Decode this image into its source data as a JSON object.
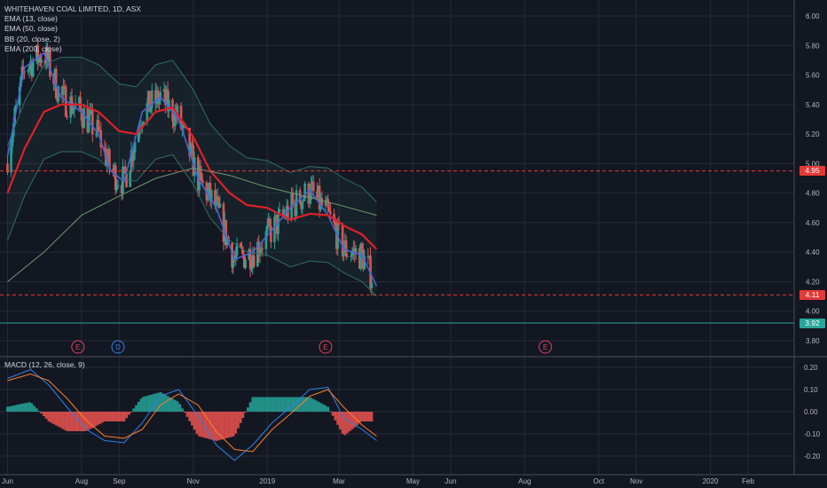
{
  "legend": {
    "title": "WHITEHAVEN COAL LIMITED, 1D, ASX",
    "ema13": "EMA (13, close)",
    "ema50": "EMA (50, close)",
    "bb": "BB (20, close, 2)",
    "ema200": "EMA (200, close)",
    "macd": "MACD (12, 26, close, 9)"
  },
  "price_tags": [
    {
      "label": "4.95",
      "value": 4.95,
      "color": "#e53935"
    },
    {
      "label": "4.11",
      "value": 4.11,
      "color": "#e53935"
    },
    {
      "label": "3.92",
      "value": 3.92,
      "color": "#26a69a"
    }
  ],
  "event_markers": [
    {
      "label": "E",
      "date": "2018-07-29",
      "color": "#e0445a"
    },
    {
      "label": "D",
      "date": "2018-08-31",
      "color": "#2f80ed"
    },
    {
      "label": "E",
      "date": "2019-02-18",
      "color": "#e0445a"
    },
    {
      "label": "E",
      "date": "2019-08-18",
      "color": "#e0445a"
    }
  ],
  "colors": {
    "background": "#131722",
    "grid": "#262b38",
    "up": "#26a69a",
    "down": "#ef5350",
    "ema13": "#4a63d9",
    "ema50": "#e0202a",
    "ema200": "#6c9a70",
    "bb": "#2f6f63",
    "macd_line": "#2f80ed",
    "signal_line": "#ff7f2a"
  },
  "chart_data": [
    {
      "type": "candlestick",
      "title": "WHITEHAVEN COAL LIMITED, 1D, ASX",
      "x_ticks": [
        "Jun",
        "Aug",
        "Sep",
        "Nov",
        "2019",
        "Mar",
        "May",
        "Jun",
        "Aug",
        "Oct",
        "Nov",
        "2020",
        "Feb"
      ],
      "y_ticks": [
        "6.00",
        "5.80",
        "5.60",
        "5.40",
        "5.20",
        "5.00",
        "4.80",
        "4.60",
        "4.40",
        "4.20",
        "4.00",
        "3.80"
      ],
      "ylim": [
        3.75,
        6.05
      ],
      "series": [
        {
          "name": "EMA (13, close)",
          "x": [
            "2018-06-01",
            "2018-06-15",
            "2018-07-01",
            "2018-07-15",
            "2018-08-01",
            "2018-08-15",
            "2018-08-25",
            "2018-09-05",
            "2018-09-20",
            "2018-10-05",
            "2018-10-20",
            "2018-11-05",
            "2018-11-20",
            "2018-12-05",
            "2018-12-20",
            "2019-01-05",
            "2019-01-20",
            "2019-02-05",
            "2019-02-20",
            "2019-03-05",
            "2019-03-20",
            "2019-04-01"
          ],
          "values": [
            5.05,
            5.65,
            5.75,
            5.45,
            5.35,
            5.2,
            4.95,
            4.88,
            5.35,
            5.45,
            5.3,
            4.9,
            4.7,
            4.35,
            4.4,
            4.55,
            4.7,
            4.82,
            4.65,
            4.42,
            4.38,
            4.17
          ]
        },
        {
          "name": "EMA (50, close)",
          "x": [
            "2018-06-01",
            "2018-06-15",
            "2018-07-01",
            "2018-07-15",
            "2018-08-01",
            "2018-08-15",
            "2018-09-01",
            "2018-09-15",
            "2018-10-01",
            "2018-10-15",
            "2018-11-01",
            "2018-11-15",
            "2018-12-01",
            "2018-12-15",
            "2019-01-01",
            "2019-01-20",
            "2019-02-05",
            "2019-02-20",
            "2019-03-05",
            "2019-03-20",
            "2019-04-01"
          ],
          "values": [
            4.8,
            5.1,
            5.35,
            5.4,
            5.4,
            5.35,
            5.22,
            5.2,
            5.35,
            5.38,
            5.18,
            4.95,
            4.8,
            4.72,
            4.7,
            4.62,
            4.66,
            4.65,
            4.58,
            4.52,
            4.42
          ]
        },
        {
          "name": "EMA (200, close)",
          "x": [
            "2018-06-01",
            "2018-07-01",
            "2018-08-01",
            "2018-09-01",
            "2018-10-01",
            "2018-11-01",
            "2018-12-01",
            "2019-01-01",
            "2019-02-01",
            "2019-03-01",
            "2019-04-01"
          ],
          "values": [
            4.2,
            4.4,
            4.65,
            4.78,
            4.9,
            4.97,
            4.92,
            4.84,
            4.78,
            4.72,
            4.65
          ]
        }
      ]
    },
    {
      "type": "bar",
      "title": "MACD (12, 26, close, 9)",
      "y_ticks": [
        "0.20",
        "0.10",
        "0.00",
        "-0.10",
        "-0.20"
      ],
      "ylim": [
        -0.24,
        0.22
      ],
      "series": [
        {
          "name": "MACD",
          "x": [
            "2018-06-01",
            "2018-06-20",
            "2018-07-05",
            "2018-07-20",
            "2018-08-05",
            "2018-08-20",
            "2018-09-05",
            "2018-09-20",
            "2018-10-05",
            "2018-10-20",
            "2018-11-05",
            "2018-11-20",
            "2018-12-05",
            "2018-12-20",
            "2019-01-05",
            "2019-01-20",
            "2019-02-05",
            "2019-02-20",
            "2019-03-05",
            "2019-03-20",
            "2019-04-01"
          ],
          "values": [
            0.15,
            0.19,
            0.12,
            0.02,
            -0.08,
            -0.13,
            -0.14,
            -0.05,
            0.07,
            0.1,
            -0.02,
            -0.15,
            -0.22,
            -0.15,
            -0.05,
            0.02,
            0.1,
            0.11,
            -0.03,
            -0.08,
            -0.13
          ]
        },
        {
          "name": "Signal",
          "x": [
            "2018-06-01",
            "2018-06-20",
            "2018-07-05",
            "2018-07-20",
            "2018-08-05",
            "2018-08-20",
            "2018-09-05",
            "2018-09-20",
            "2018-10-05",
            "2018-10-20",
            "2018-11-05",
            "2018-11-20",
            "2018-12-05",
            "2018-12-20",
            "2019-01-05",
            "2019-01-20",
            "2019-02-05",
            "2019-02-20",
            "2019-03-05",
            "2019-03-20",
            "2019-04-01"
          ],
          "values": [
            0.14,
            0.17,
            0.14,
            0.06,
            -0.04,
            -0.11,
            -0.12,
            -0.08,
            0.03,
            0.08,
            0.03,
            -0.09,
            -0.17,
            -0.18,
            -0.08,
            -0.01,
            0.07,
            0.1,
            0.02,
            -0.06,
            -0.11
          ]
        }
      ]
    }
  ]
}
